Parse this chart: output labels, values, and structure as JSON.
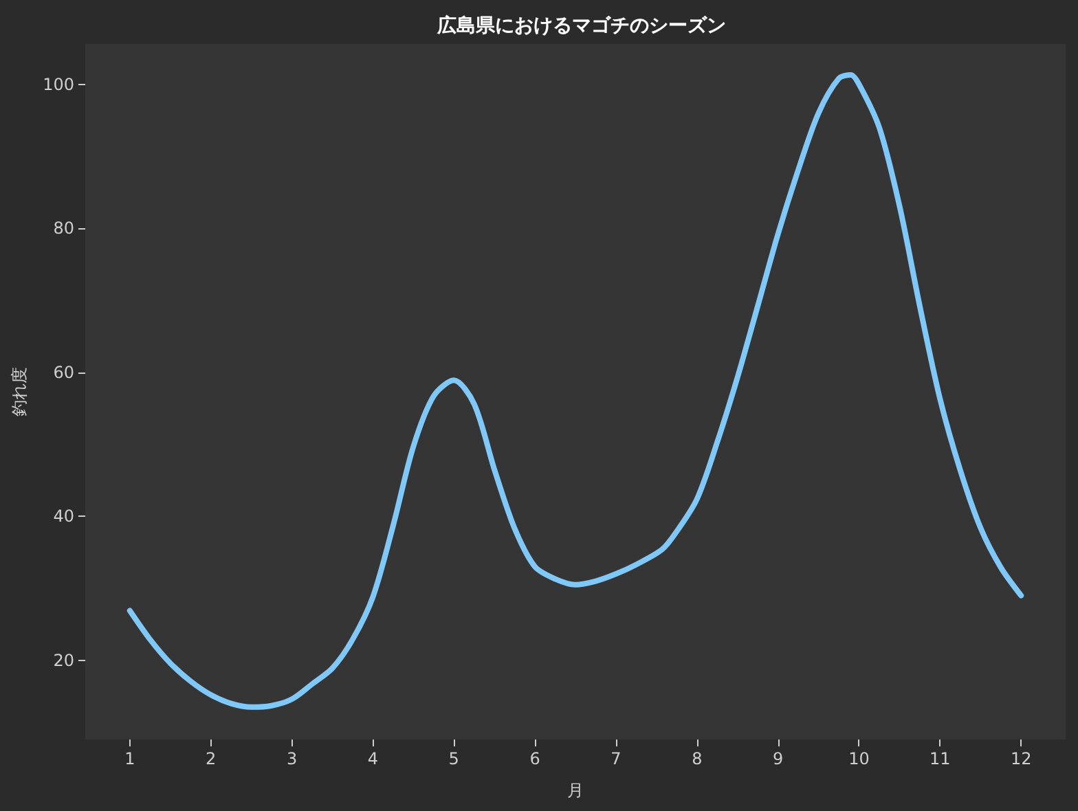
{
  "chart_data": {
    "type": "line",
    "title": "広島県におけるマゴチのシーズン",
    "xlabel": "月",
    "ylabel": "釣れ度",
    "x": [
      1,
      1.25,
      1.5,
      1.75,
      2,
      2.25,
      2.5,
      2.75,
      3,
      3.25,
      3.5,
      3.75,
      4,
      4.25,
      4.5,
      4.75,
      5,
      5.25,
      5.5,
      5.75,
      6,
      6.25,
      6.5,
      6.75,
      7,
      7.25,
      7.57,
      7.75,
      8,
      8.25,
      8.5,
      8.75,
      9,
      9.25,
      9.5,
      9.75,
      9.9,
      10,
      10.25,
      10.5,
      10.75,
      11,
      11.25,
      11.5,
      11.75,
      12
    ],
    "values": [
      26.9,
      22.9,
      19.6,
      17.1,
      15.2,
      14,
      13.5,
      13.7,
      14.6,
      16.7,
      18.9,
      22.9,
      28.8,
      38.7,
      49.7,
      56.7,
      58.9,
      55.6,
      46.5,
      38.3,
      33,
      31.3,
      30.5,
      31,
      32,
      33.3,
      35.4,
      37.9,
      42.4,
      50.3,
      59.3,
      69.2,
      79.2,
      88.1,
      96,
      100.8,
      101.3,
      100,
      94,
      83.1,
      69.2,
      56.3,
      46.4,
      38.4,
      32.9,
      29
    ],
    "color": "#80c8f8",
    "xlim": [
      0.45,
      12.55
    ],
    "ylim": [
      9,
      105.6
    ],
    "xticks": [
      1,
      2,
      3,
      4,
      5,
      6,
      7,
      8,
      9,
      10,
      11,
      12
    ],
    "yticks": [
      20,
      40,
      60,
      80,
      100
    ],
    "grid": false,
    "marker": "none",
    "line_style": "solid"
  }
}
